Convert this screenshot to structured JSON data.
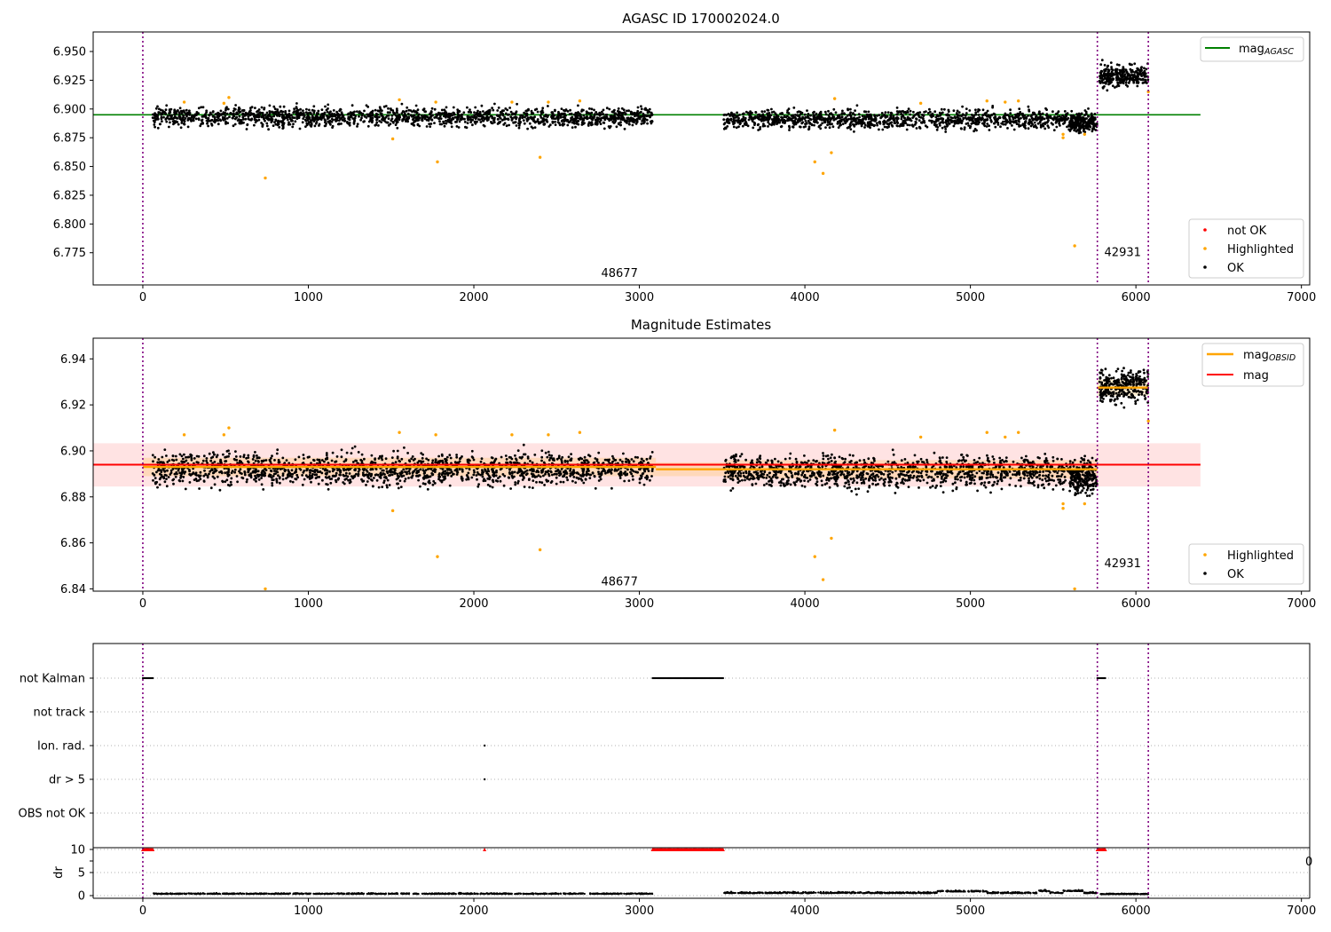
{
  "figure": {
    "title_top": "AGASC ID 170002024.0",
    "title_mid": "Magnitude Estimates"
  },
  "chart_data": [
    {
      "type": "scatter",
      "title": "AGASC ID 170002024.0",
      "xlim": [
        -300,
        7050
      ],
      "ylim": [
        6.747,
        6.967
      ],
      "xticks": [
        0,
        1000,
        2000,
        3000,
        4000,
        5000,
        6000,
        7000
      ],
      "yticks": [
        "6.775",
        "6.800",
        "6.825",
        "6.850",
        "6.875",
        "6.900",
        "6.925",
        "6.950"
      ],
      "grid": false,
      "obsid_boundaries": [
        0,
        5767,
        6075
      ],
      "obsid_labels": [
        {
          "text": "48677",
          "x": 2880,
          "y": 6.757
        },
        {
          "text": "42931",
          "x": 5920,
          "y": 6.775
        }
      ],
      "reference_lines": [
        {
          "name": "mag",
          "subscript": "AGASC",
          "color": "#008000",
          "y": 6.895,
          "x_range": [
            -300,
            6390
          ]
        }
      ],
      "series": [
        {
          "name": "not OK",
          "color": "#ff0000",
          "points": []
        },
        {
          "name": "Highlighted",
          "color": "#ffa500",
          "points": [
            [
              250,
              6.906
            ],
            [
              490,
              6.905
            ],
            [
              520,
              6.91
            ],
            [
              740,
              6.84
            ],
            [
              1510,
              6.874
            ],
            [
              1550,
              6.908
            ],
            [
              1770,
              6.906
            ],
            [
              1780,
              6.854
            ],
            [
              2230,
              6.906
            ],
            [
              2400,
              6.858
            ],
            [
              2450,
              6.906
            ],
            [
              2640,
              6.907
            ],
            [
              4060,
              6.854
            ],
            [
              4110,
              6.844
            ],
            [
              4160,
              6.862
            ],
            [
              4180,
              6.909
            ],
            [
              4700,
              6.905
            ],
            [
              5100,
              6.907
            ],
            [
              5210,
              6.906
            ],
            [
              5290,
              6.907
            ],
            [
              5560,
              6.878
            ],
            [
              5560,
              6.875
            ],
            [
              5630,
              6.781
            ],
            [
              5690,
              6.878
            ],
            [
              6075,
              6.915
            ]
          ]
        },
        {
          "name": "OK",
          "color": "#000000",
          "segments": [
            {
              "x": [
                60,
                3080
              ],
              "center": 6.893,
              "spread": 0.014,
              "n": 1700
            },
            {
              "x": [
                3510,
                5760
              ],
              "center": 6.891,
              "spread": 0.014,
              "n": 1300
            },
            {
              "x": [
                5600,
                5765
              ],
              "center": 6.887,
              "spread": 0.012,
              "n": 140
            },
            {
              "x": [
                5780,
                6075
              ],
              "center": 6.929,
              "spread": 0.016,
              "n": 300
            }
          ]
        }
      ],
      "legends": {
        "upper_right": [
          "mag"
        ],
        "lower_right": [
          "not OK",
          "Highlighted",
          "OK"
        ]
      }
    },
    {
      "type": "scatter",
      "title": "Magnitude Estimates",
      "xlim": [
        -300,
        7050
      ],
      "ylim": [
        6.839,
        6.949
      ],
      "xticks": [
        0,
        1000,
        2000,
        3000,
        4000,
        5000,
        6000,
        7000
      ],
      "yticks": [
        "6.84",
        "6.86",
        "6.88",
        "6.90",
        "6.92",
        "6.94"
      ],
      "grid": false,
      "obsid_boundaries": [
        0,
        5767,
        6075
      ],
      "obsid_labels": [
        {
          "text": "48677",
          "x": 2880,
          "y": 6.843
        },
        {
          "text": "42931",
          "x": 5920,
          "y": 6.851
        }
      ],
      "bands": [
        {
          "color": "#ff0000",
          "opacity": 0.11,
          "x_range": [
            -300,
            6390
          ],
          "y_range": [
            6.8845,
            6.9033
          ]
        },
        {
          "color": "#ffa500",
          "opacity": 0.18,
          "x_range": [
            0,
            3100
          ],
          "y_range": [
            6.889,
            6.897
          ]
        },
        {
          "color": "#ffa500",
          "opacity": 0.18,
          "x_range": [
            3100,
            3520
          ],
          "y_range": [
            6.889,
            6.895
          ]
        },
        {
          "color": "#ffa500",
          "opacity": 0.18,
          "x_range": [
            3520,
            5767
          ],
          "y_range": [
            6.888,
            6.896
          ]
        },
        {
          "color": "#ffa500",
          "opacity": 0.18,
          "x_range": [
            5767,
            6075
          ],
          "y_range": [
            6.924,
            6.931
          ]
        }
      ],
      "reference_lines": [
        {
          "name": "mag",
          "subscript": "OBSID",
          "color": "#ffa500",
          "segments": [
            {
              "x_range": [
                0,
                3100
              ],
              "y": 6.893
            },
            {
              "x_range": [
                3100,
                3520
              ],
              "y": 6.892
            },
            {
              "x_range": [
                3520,
                5767
              ],
              "y": 6.892
            },
            {
              "x_range": [
                5767,
                6075
              ],
              "y": 6.9275
            }
          ]
        },
        {
          "name": "mag",
          "color": "#ff0000",
          "y": 6.894,
          "x_range": [
            -300,
            6390
          ]
        }
      ],
      "series": [
        {
          "name": "Highlighted",
          "color": "#ffa500",
          "points": [
            [
              250,
              6.907
            ],
            [
              490,
              6.907
            ],
            [
              520,
              6.91
            ],
            [
              740,
              6.84
            ],
            [
              1510,
              6.874
            ],
            [
              1550,
              6.908
            ],
            [
              1770,
              6.907
            ],
            [
              1780,
              6.854
            ],
            [
              2230,
              6.907
            ],
            [
              2400,
              6.857
            ],
            [
              2450,
              6.907
            ],
            [
              2640,
              6.908
            ],
            [
              4060,
              6.854
            ],
            [
              4110,
              6.844
            ],
            [
              4160,
              6.862
            ],
            [
              4180,
              6.909
            ],
            [
              4700,
              6.906
            ],
            [
              5100,
              6.908
            ],
            [
              5210,
              6.906
            ],
            [
              5290,
              6.908
            ],
            [
              5560,
              6.877
            ],
            [
              5560,
              6.875
            ],
            [
              5630,
              6.84
            ],
            [
              5690,
              6.877
            ],
            [
              6075,
              6.913
            ]
          ]
        },
        {
          "name": "OK",
          "color": "#000000",
          "segments": [
            {
              "x": [
                60,
                3080
              ],
              "center": 6.892,
              "spread": 0.012,
              "n": 1700
            },
            {
              "x": [
                3510,
                5760
              ],
              "center": 6.891,
              "spread": 0.012,
              "n": 1300
            },
            {
              "x": [
                5600,
                5765
              ],
              "center": 6.887,
              "spread": 0.01,
              "n": 140
            },
            {
              "x": [
                5780,
                6075
              ],
              "center": 6.928,
              "spread": 0.012,
              "n": 300
            }
          ]
        }
      ],
      "legends": {
        "upper_right": [
          "mag",
          "mag"
        ],
        "lower_right": [
          "Highlighted",
          "OK"
        ]
      }
    },
    {
      "type": "scatter",
      "title": "",
      "xlim": [
        -300,
        7050
      ],
      "categories": [
        "not Kalman",
        "not track",
        "Ion. rad.",
        "dr > 5",
        "OBS not OK"
      ],
      "grid": true,
      "obsid_boundaries": [
        0,
        5767,
        6075
      ],
      "flags": [
        {
          "category": "not Kalman",
          "ranges": [
            [
              0,
              60
            ],
            [
              3080,
              3510
            ],
            [
              5767,
              5820
            ]
          ]
        },
        {
          "category": "Ion. rad.",
          "points": [
            2065
          ]
        },
        {
          "category": "dr > 5",
          "points": [
            2065
          ]
        }
      ]
    },
    {
      "type": "scatter",
      "title": "",
      "ylabel": "dr",
      "xlim": [
        -300,
        7050
      ],
      "ylim": [
        -0.5,
        10.5
      ],
      "xticks": [
        0,
        1000,
        2000,
        3000,
        4000,
        5000,
        6000,
        7000
      ],
      "yticks": [
        "0",
        "5",
        "10"
      ],
      "grid": true,
      "obsid_boundaries": [
        0,
        5767,
        6075
      ],
      "clipped_markers": {
        "color": "#ff0000",
        "y": 10,
        "ranges": [
          [
            0,
            60
          ],
          [
            3080,
            3510
          ],
          [
            5767,
            5820
          ]
        ],
        "points": [
          2065
        ]
      },
      "series": [
        {
          "name": "dr",
          "color": "#000000",
          "segments": [
            {
              "x": [
                60,
                3080
              ],
              "center": 0.35,
              "spread": 0.3,
              "n": 900
            },
            {
              "x": [
                3510,
                5760
              ],
              "center": 0.5,
              "spread": 0.45,
              "n": 800
            },
            {
              "x": [
                5780,
                6075
              ],
              "center": 0.3,
              "spread": 0.25,
              "n": 120
            }
          ]
        }
      ]
    }
  ],
  "stray_tick_label": "0"
}
